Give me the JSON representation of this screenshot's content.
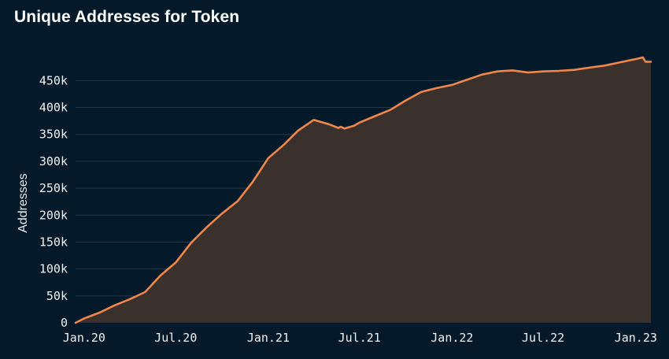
{
  "chart_data": {
    "type": "area",
    "title": "Unique Addresses for Token",
    "xlabel": "",
    "ylabel": "Addresses",
    "xlim": [
      "2019-12-15",
      "2023-01-31"
    ],
    "ylim": [
      0,
      490000
    ],
    "y_ticks": [
      0,
      50000,
      100000,
      150000,
      200000,
      250000,
      300000,
      350000,
      400000,
      450000
    ],
    "y_tick_labels": [
      "0",
      "50k",
      "100k",
      "150k",
      "200k",
      "250k",
      "300k",
      "350k",
      "400k",
      "450k"
    ],
    "x_ticks": [
      "2020-01-01",
      "2020-07-01",
      "2021-01-01",
      "2021-07-01",
      "2022-01-01",
      "2022-07-01",
      "2023-01-01"
    ],
    "x_tick_labels": [
      "Jan.20",
      "Jul.20",
      "Jan.21",
      "Jul.21",
      "Jan.22",
      "Jul.22",
      "Jan.23"
    ],
    "grid": true,
    "legend": "none",
    "colors": {
      "line": "#f0874a",
      "fill": "#3a302c",
      "grid": "#22394a",
      "background": "#041a2a"
    },
    "series": [
      {
        "x": [
          "2019-12-15",
          "2020-01-01",
          "2020-02-01",
          "2020-03-01",
          "2020-04-01",
          "2020-05-01",
          "2020-06-01",
          "2020-07-01",
          "2020-08-01",
          "2020-09-01",
          "2020-10-01",
          "2020-11-01",
          "2020-12-01",
          "2021-01-01",
          "2021-02-01",
          "2021-03-01",
          "2021-04-01",
          "2021-05-01",
          "2021-05-20",
          "2021-05-25",
          "2021-06-01",
          "2021-06-20",
          "2021-07-01",
          "2021-08-01",
          "2021-09-01",
          "2021-10-01",
          "2021-11-01",
          "2021-12-01",
          "2022-01-01",
          "2022-02-01",
          "2022-03-01",
          "2022-04-01",
          "2022-05-01",
          "2022-06-01",
          "2022-07-01",
          "2022-08-01",
          "2022-09-01",
          "2022-10-01",
          "2022-11-01",
          "2022-12-01",
          "2023-01-01",
          "2023-01-15",
          "2023-01-20",
          "2023-01-31"
        ],
        "values": [
          0,
          8000,
          19000,
          32000,
          44000,
          57000,
          88000,
          112000,
          149000,
          178000,
          203000,
          226000,
          262000,
          306000,
          331000,
          357000,
          377000,
          369000,
          362000,
          364000,
          361000,
          366000,
          372000,
          384000,
          396000,
          413000,
          429000,
          436000,
          442000,
          452000,
          461000,
          467000,
          469000,
          465000,
          467000,
          468000,
          470000,
          474000,
          478000,
          484000,
          490000,
          493000,
          485000,
          485000
        ]
      }
    ]
  }
}
